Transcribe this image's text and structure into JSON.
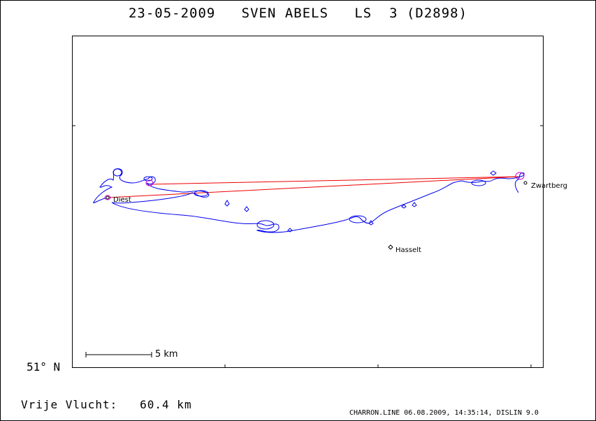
{
  "title": "23-05-2009   SVEN ABELS   LS  3 (D2898)",
  "latitude_label": "51° N",
  "scale": {
    "label": "5 km"
  },
  "cities": [
    {
      "name": "Diest"
    },
    {
      "name": "Hasselt"
    },
    {
      "name": "Zwartberg"
    }
  ],
  "footer": {
    "flight_label": "Vrije Vlucht:",
    "flight_distance": "60.4 km",
    "software": "CHARRON.LINE 06.08.2009, 14:35:14, DISLIN 9.0"
  },
  "colors": {
    "track": "#0000ee",
    "turnpoint_line": "#ee0000",
    "marker": "#cc00cc",
    "axis": "#000000"
  }
}
